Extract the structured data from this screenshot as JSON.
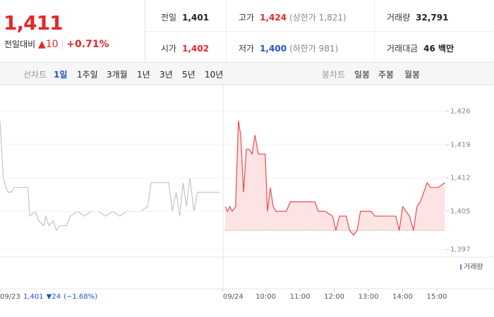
{
  "header": {
    "price": "1,411",
    "change_label": "전일대비",
    "change": "▲10",
    "change_rate": "+0.71%",
    "stats": [
      {
        "label": "전일",
        "value": "1,401"
      },
      {
        "label": "고가",
        "value": "1,424",
        "note": "(상한가 1,821)"
      },
      {
        "label": "거래량",
        "value": "32,791"
      },
      {
        "label": "시가",
        "value": "1,402"
      },
      {
        "label": "저가",
        "value": "1,400",
        "note": "(하한가 981)"
      },
      {
        "label": "거래대금",
        "value": "46 백만"
      }
    ]
  },
  "tabs": {
    "line_label": "선차트",
    "line": [
      "1일",
      "1주일",
      "3개월",
      "1년",
      "3년",
      "5년",
      "10년"
    ],
    "candle_label": "봉차트",
    "candle": [
      "일봉",
      "주봉",
      "월봉"
    ]
  },
  "summary": {
    "price": "1,401",
    "change": "▼24",
    "rate": "(−1.68%)"
  },
  "volume_label": "거래량",
  "chart_data": [
    {
      "type": "line",
      "xlim": [
        -15,
        376
      ],
      "ylim": [
        1395.4,
        1431.6
      ],
      "xticks": [
        {
          "value": -15,
          "label": "09/23"
        }
      ],
      "series": [
        {
          "color": "#c4c4c4",
          "x": [
            -15,
            -9,
            -5,
            0,
            4,
            10,
            34,
            37,
            47,
            53,
            62,
            65,
            71,
            78,
            84,
            90,
            102,
            108,
            121,
            133,
            145,
            158,
            170,
            183,
            195,
            207,
            232,
            244,
            250,
            281,
            287,
            294,
            300,
            306,
            312,
            318,
            325,
            331,
            343,
            355,
            370
          ],
          "values": [
            1424,
            1412,
            1410,
            1409,
            1409,
            1410,
            1410,
            1404,
            1405,
            1403,
            1402,
            1404,
            1402,
            1403,
            1401,
            1402,
            1402,
            1404,
            1405,
            1404,
            1405,
            1405,
            1404,
            1405,
            1404,
            1405,
            1405,
            1406,
            1411,
            1411,
            1405,
            1409,
            1404,
            1411,
            1406,
            1412,
            1405,
            1409,
            1409,
            1409,
            1409
          ]
        }
      ]
    },
    {
      "type": "line",
      "xlim": [
        -15,
        376
      ],
      "ylim": [
        1395.4,
        1431.6
      ],
      "yticks": [
        {
          "value": 1397,
          "label": "1,397"
        },
        {
          "value": 1405,
          "label": "1,405"
        },
        {
          "value": 1412,
          "label": "1,412"
        },
        {
          "value": 1419,
          "label": "1,419"
        },
        {
          "value": 1426,
          "label": "1,426"
        }
      ],
      "xticks": [
        {
          "value": -15,
          "label": "09/24"
        },
        {
          "value": 60,
          "label": "10:00"
        },
        {
          "value": 120,
          "label": "11:00"
        },
        {
          "value": 180,
          "label": "12:00"
        },
        {
          "value": 240,
          "label": "13:00"
        },
        {
          "value": 300,
          "label": "14:00"
        },
        {
          "value": 360,
          "label": "15:00"
        }
      ],
      "baseline": 1401,
      "series": [
        {
          "color": "#ef4848",
          "fill": "#fde4e4",
          "x": [
            -11,
            -7,
            -3,
            1,
            7,
            12,
            16,
            21,
            26,
            31,
            36,
            41,
            47,
            59,
            63,
            68,
            73,
            78,
            84,
            96,
            103,
            115,
            146,
            152,
            164,
            177,
            183,
            189,
            201,
            207,
            214,
            220,
            226,
            245,
            251,
            288,
            294,
            300,
            312,
            319,
            325,
            331,
            337,
            343,
            349,
            362,
            374
          ],
          "values": [
            1406,
            1405,
            1406,
            1405,
            1406,
            1424,
            1421,
            1409,
            1418,
            1418,
            1417,
            1421,
            1417,
            1417,
            1405,
            1410,
            1406,
            1405,
            1405,
            1405,
            1407,
            1407,
            1407,
            1405,
            1405,
            1404,
            1401,
            1404,
            1404,
            1401,
            1400,
            1401,
            1405,
            1405,
            1404,
            1404,
            1401,
            1406,
            1404,
            1401,
            1406,
            1407,
            1409,
            1411,
            1410,
            1410,
            1411
          ]
        }
      ]
    }
  ]
}
